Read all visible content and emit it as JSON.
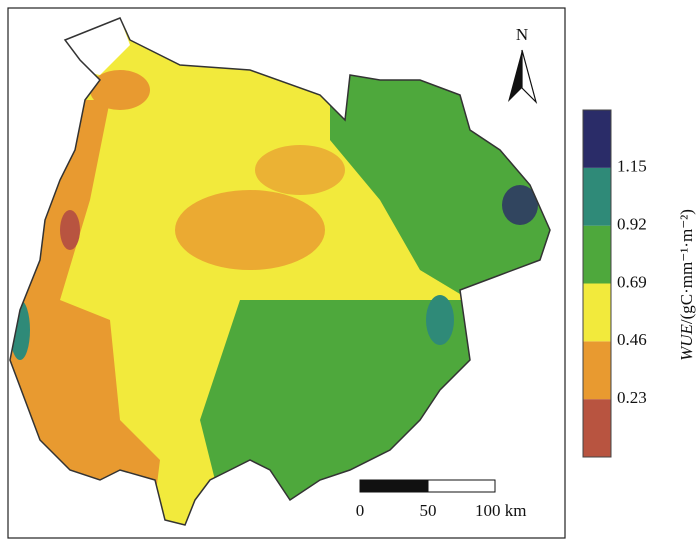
{
  "map": {
    "north_label": "N",
    "scale_bar": {
      "labels": [
        "0",
        "50",
        "100 km"
      ]
    },
    "legend": {
      "title_variable": "WUE",
      "title_unit": "/(gC·mm⁻¹·m⁻²)",
      "colors": [
        "#b85440",
        "#e89a30",
        "#f2ea3c",
        "#4ea83c",
        "#2f8a78",
        "#2a2c68"
      ],
      "ticks": [
        "0.23",
        "0.46",
        "0.69",
        "0.92",
        "1.15"
      ]
    }
  }
}
